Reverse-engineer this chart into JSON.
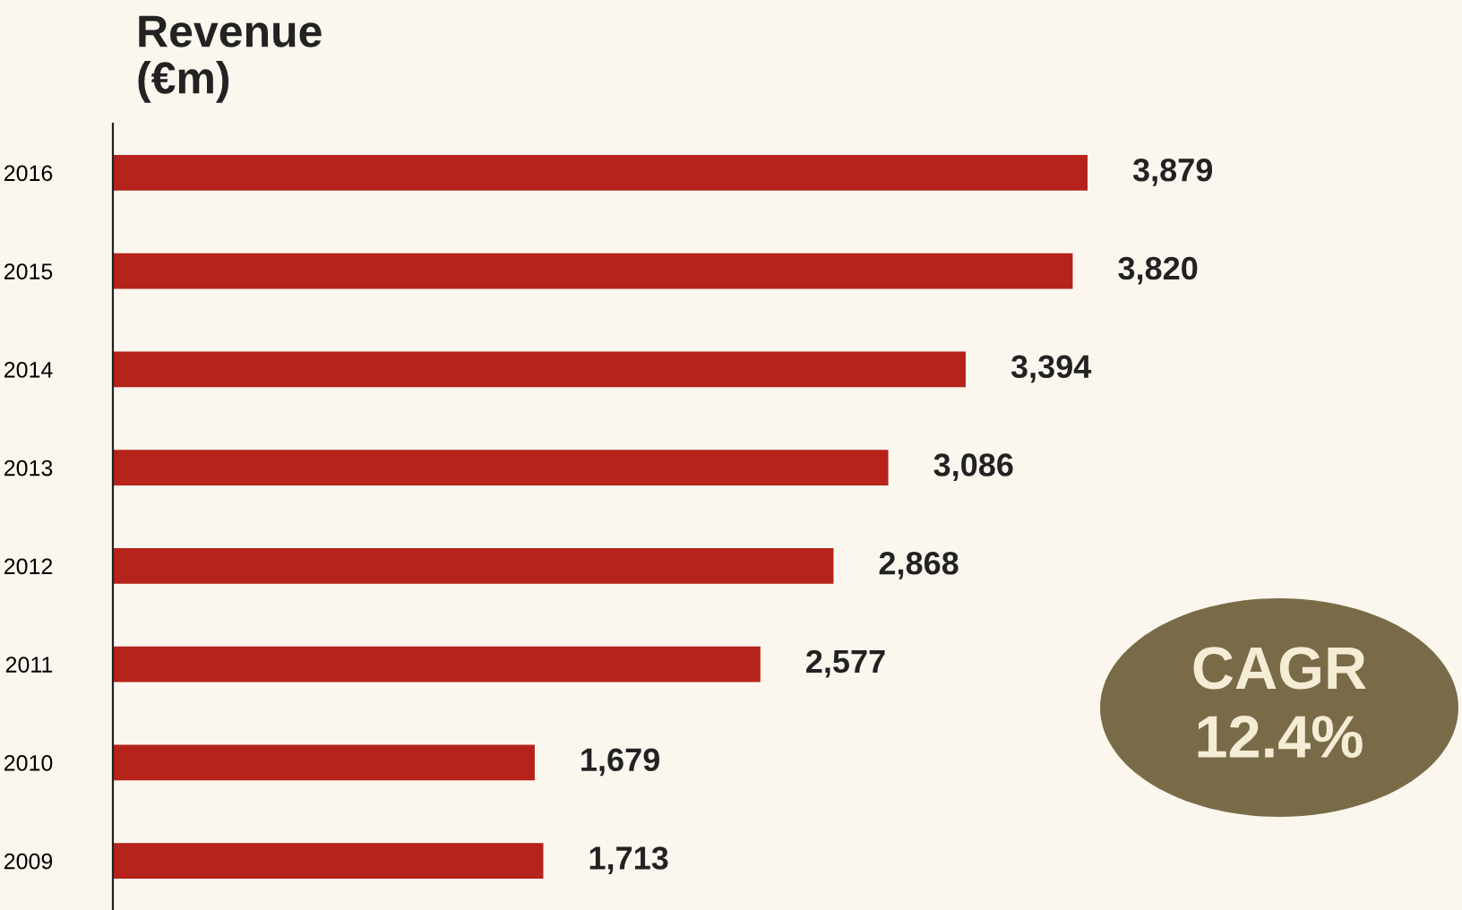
{
  "chart_data": {
    "type": "bar",
    "orientation": "horizontal",
    "title": "Revenue\n(€m)",
    "categories": [
      "2016",
      "2015",
      "2014",
      "2013",
      "2012",
      "2011",
      "2010",
      "2009"
    ],
    "values": [
      3879,
      3820,
      3394,
      3086,
      2868,
      2577,
      1679,
      1713
    ],
    "color": "#b5231a",
    "data_labels": true,
    "value_labels": [
      "3,879",
      "3,820",
      "3,394",
      "3,086",
      "2,868",
      "2,577",
      "1,679",
      "1,713"
    ],
    "grid": false,
    "annotations": [
      "CAGR\n12.4%"
    ]
  }
}
